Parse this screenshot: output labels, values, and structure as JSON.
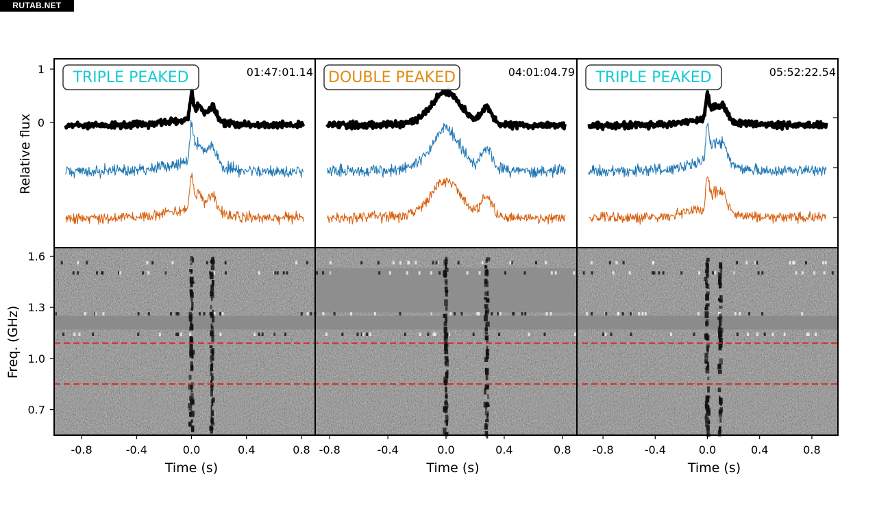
{
  "watermark": "RUTAB.NET",
  "figure": {
    "flux_ylabel": "Relative flux",
    "flux_ytick_labels": [
      "1",
      "0"
    ],
    "freq_ylabel": "Freq. (GHz)",
    "freq_ytick_labels": [
      "1.6",
      "1.3",
      "1.0",
      "0.7"
    ],
    "xtick_labels": [
      "-0.8",
      "-0.4",
      "0.0",
      "0.4",
      "0.8"
    ],
    "xlabel": "Time (s)"
  },
  "chart_data": [
    {
      "type": "line",
      "panel": 1,
      "badge": "TRIPLE PEAKED",
      "badge_color": "#18c9d6",
      "timestamp": "01:47:01.14",
      "x_range": [
        -1.0,
        0.9
      ],
      "xticks": [
        -0.8,
        -0.4,
        0.0,
        0.4,
        0.8
      ],
      "xlabel": "Time (s)",
      "ylabel": "Relative flux",
      "grid": false,
      "peaks": [
        0.0,
        0.05,
        0.15
      ],
      "series": [
        {
          "color": "#000000",
          "baseline": 0,
          "peak_amplitude": 0.6
        },
        {
          "color": "#1f77b4",
          "baseline": -0.95,
          "peak_amplitude": 0.9
        },
        {
          "color": "#d95f0e",
          "baseline": -1.8,
          "peak_amplitude": 0.8
        }
      ]
    },
    {
      "type": "line",
      "panel": 2,
      "badge": "DOUBLE PEAKED",
      "badge_color": "#e08c14",
      "timestamp": "04:01:04.79",
      "x_range": [
        -0.9,
        0.9
      ],
      "xticks": [
        -0.8,
        -0.4,
        0.0,
        0.4,
        0.8
      ],
      "xlabel": "Time (s)",
      "ylabel": "Relative flux",
      "grid": false,
      "peaks": [
        0.0,
        0.28
      ],
      "series": [
        {
          "color": "#000000",
          "baseline": 0,
          "peak_amplitude": 0.7
        },
        {
          "color": "#1f77b4",
          "baseline": -0.85,
          "peak_amplitude": 0.9
        },
        {
          "color": "#d95f0e",
          "baseline": -1.7,
          "peak_amplitude": 0.8
        }
      ]
    },
    {
      "type": "line",
      "panel": 3,
      "badge": "TRIPLE PEAKED",
      "badge_color": "#18c9d6",
      "timestamp": "05:52:22.54",
      "x_range": [
        -1.0,
        1.0
      ],
      "xticks": [
        -0.8,
        -0.4,
        0.0,
        0.4,
        0.8
      ],
      "xlabel": "Time (s)",
      "ylabel": "Relative flux",
      "grid": false,
      "peaks": [
        0.0,
        0.05,
        0.12
      ],
      "series": [
        {
          "color": "#000000",
          "baseline": 0,
          "peak_amplitude": 0.6
        },
        {
          "color": "#1f77b4",
          "baseline": -0.9,
          "peak_amplitude": 0.9
        },
        {
          "color": "#d95f0e",
          "baseline": -1.8,
          "peak_amplitude": 0.8
        }
      ]
    },
    {
      "type": "heatmap",
      "panel": 1,
      "colormap": "gray",
      "x_range": [
        -1.0,
        0.9
      ],
      "y_range": [
        0.55,
        1.65
      ],
      "yticks": [
        1.6,
        1.3,
        1.0,
        0.7
      ],
      "xticks": [
        -0.8,
        -0.4,
        0.0,
        0.4,
        0.8
      ],
      "ylabel": "Freq. (GHz)",
      "xlabel": "Time (s)",
      "reference_lines_ghz": [
        1.09,
        0.85
      ],
      "reference_line_color": "#e02020",
      "burst_time_s": [
        0.0,
        0.15
      ]
    },
    {
      "type": "heatmap",
      "panel": 2,
      "colormap": "gray",
      "x_range": [
        -0.9,
        0.9
      ],
      "y_range": [
        0.55,
        1.65
      ],
      "yticks": [
        1.6,
        1.3,
        1.0,
        0.7
      ],
      "xticks": [
        -0.8,
        -0.4,
        0.0,
        0.4,
        0.8
      ],
      "ylabel": "Freq. (GHz)",
      "xlabel": "Time (s)",
      "reference_lines_ghz": [
        1.09,
        0.85
      ],
      "reference_line_color": "#e02020",
      "burst_time_s": [
        0.0,
        0.28
      ]
    },
    {
      "type": "heatmap",
      "panel": 3,
      "colormap": "gray",
      "x_range": [
        -1.0,
        1.0
      ],
      "y_range": [
        0.55,
        1.65
      ],
      "yticks": [
        1.6,
        1.3,
        1.0,
        0.7
      ],
      "xticks": [
        -0.8,
        -0.4,
        0.0,
        0.4,
        0.8
      ],
      "ylabel": "Freq. (GHz)",
      "xlabel": "Time (s)",
      "reference_lines_ghz": [
        1.09,
        0.85
      ],
      "reference_line_color": "#e02020",
      "burst_time_s": [
        0.0,
        0.1
      ]
    }
  ]
}
